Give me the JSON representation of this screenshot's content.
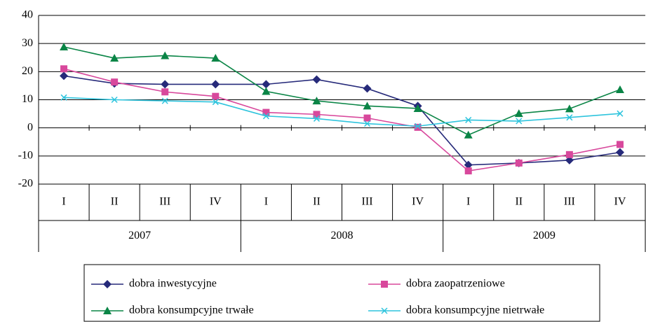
{
  "chart_data": {
    "type": "line",
    "categories": [
      "I",
      "II",
      "III",
      "IV",
      "I",
      "II",
      "III",
      "IV",
      "I",
      "II",
      "III",
      "IV"
    ],
    "groups": [
      "2007",
      "2008",
      "2009"
    ],
    "ylim": [
      -20,
      40
    ],
    "yticks": [
      -20,
      -10,
      0,
      10,
      20,
      30,
      40
    ],
    "grid": true,
    "series": [
      {
        "name": "dobra inwestycyjne",
        "color": "#262a7a",
        "marker": "diamond",
        "values": [
          18.5,
          15.8,
          15.5,
          15.5,
          15.5,
          17.2,
          14.0,
          7.8,
          -13.2,
          -12.5,
          -11.5,
          -8.7
        ]
      },
      {
        "name": "dobra zaopatrzeniowe",
        "color": "#d8489c",
        "marker": "square",
        "values": [
          21.0,
          16.3,
          12.8,
          11.2,
          5.5,
          4.8,
          3.5,
          0.2,
          -15.3,
          -12.5,
          -9.5,
          -5.9
        ]
      },
      {
        "name": "dobra konsumpcyjne trwałe",
        "color": "#0a8546",
        "marker": "triangle",
        "values": [
          28.8,
          24.8,
          25.7,
          24.8,
          13.0,
          9.6,
          7.8,
          6.9,
          -2.5,
          5.1,
          6.8,
          13.6
        ]
      },
      {
        "name": "dobra konsumpcyjne nietrwałe",
        "color": "#2ec4dd",
        "marker": "x",
        "values": [
          10.8,
          10.0,
          9.6,
          9.2,
          4.2,
          3.3,
          1.5,
          0.6,
          2.8,
          2.4,
          3.7,
          5.1
        ]
      }
    ]
  }
}
